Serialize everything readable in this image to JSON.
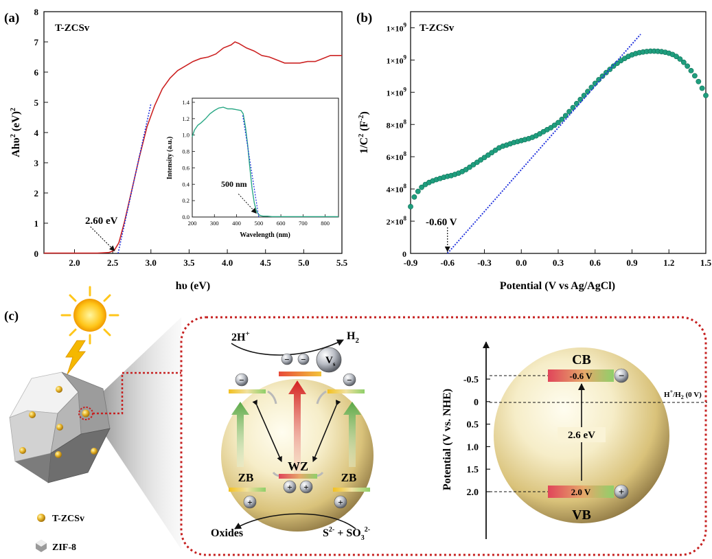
{
  "panel_a": {
    "panel_label": "(a)",
    "sample": "T-ZCSv",
    "annotation": "2.60 eV",
    "xlabel": "hυ (eV)",
    "ylabel_main": "Ahυ",
    "ylabel_sup1": "2",
    "ylabel_mid": " (eV)",
    "ylabel_sup2": "2",
    "inset": {
      "annotation": "500 nm",
      "xlabel": "Wavelength (nm)",
      "ylabel": "Intensity (a.u.)"
    }
  },
  "panel_b": {
    "panel_label": "(b)",
    "sample": "T-ZCSv",
    "annotation": "-0.60 V",
    "xlabel": "Potential (V vs Ag/AgCl)",
    "ylabel_main": "1/C",
    "ylabel_sup1": "2",
    "ylabel_mid": " (F",
    "ylabel_sup2": "-2",
    "ylabel_end": ")"
  },
  "panel_c": {
    "panel_label": "(c)",
    "legend_tzcsv": "T-ZCSv",
    "legend_zif8": "ZIF-8",
    "h_plus": "2H",
    "h_plus_sup": "+",
    "h2": "H",
    "h2_sub": "2",
    "vs": "V",
    "vs_sub": "s",
    "wz": "WZ",
    "zb": "ZB",
    "oxides": "Oxides",
    "sulfide": "S",
    "sulfide_sup": "2-",
    "sulfite_mid": " + SO",
    "sulfite_sub": "3",
    "sulfite_sup": "2-",
    "cb": "CB",
    "vb": "VB",
    "cb_value": "-0.6 V",
    "vb_value": "2.0 V",
    "gap": "2.6 eV",
    "reference": "H",
    "reference_sup": "+",
    "reference_end": "/H",
    "reference_sub": "2",
    "reference_tail": " (0 V)",
    "axis_label": "Potential (V vs. NHE)",
    "axis_ticks": [
      "-0.5",
      "0",
      "0.5",
      "1.0",
      "1.5",
      "2.0"
    ]
  },
  "chart_data": [
    {
      "type": "line",
      "name": "Tauc plot",
      "xlabel": "hυ (eV)",
      "ylabel": "Ahυ² (eV)²",
      "xlim": [
        1.6,
        5.5
      ],
      "ylim": [
        0,
        8
      ],
      "xticks": [
        "2.0",
        "2.5",
        "3.0",
        "3.5",
        "4.0",
        "4.5",
        "5.0",
        "5.5"
      ],
      "yticks": [
        "0",
        "1",
        "2",
        "3",
        "4",
        "5",
        "6",
        "7",
        "8"
      ],
      "series": [
        {
          "color": "#cc2222",
          "x": [
            1.6,
            2.3,
            2.45,
            2.52,
            2.58,
            2.65,
            2.75,
            2.85,
            2.95,
            3.05,
            3.15,
            3.25,
            3.35,
            3.45,
            3.55,
            3.65,
            3.75,
            3.85,
            3.95,
            4.05,
            4.1,
            4.15,
            4.25,
            4.35,
            4.45,
            4.55,
            4.65,
            4.75,
            4.85,
            4.95,
            5.05,
            5.15,
            5.25,
            5.35,
            5.45,
            5.5
          ],
          "y": [
            0.01,
            0.01,
            0.03,
            0.1,
            0.35,
            1.0,
            2.1,
            3.2,
            4.2,
            4.9,
            5.45,
            5.8,
            6.05,
            6.2,
            6.35,
            6.45,
            6.5,
            6.6,
            6.8,
            6.9,
            7.0,
            6.95,
            6.8,
            6.7,
            6.55,
            6.5,
            6.4,
            6.3,
            6.3,
            6.3,
            6.35,
            6.35,
            6.45,
            6.55,
            6.55,
            6.55
          ]
        }
      ],
      "fit_line": {
        "x": [
          2.57,
          3.0
        ],
        "y": [
          0.0,
          4.95
        ],
        "color": "#2233dd"
      },
      "annotation": {
        "text": "2.60 eV",
        "x": 2.55,
        "y": 0.02
      },
      "inset": {
        "type": "line",
        "xlabel": "Wavelength (nm)",
        "ylabel": "Intensity (a.u.)",
        "xlim": [
          200,
          860
        ],
        "ylim": [
          0,
          1.45
        ],
        "xticks": [
          "200",
          "300",
          "400",
          "500",
          "600",
          "700",
          "800"
        ],
        "yticks": [
          "0.0",
          "0.2",
          "0.4",
          "0.6",
          "0.8",
          "1.0",
          "1.2",
          "1.4"
        ],
        "series": [
          {
            "color": "#2aa885",
            "x": [
              200,
              210,
              225,
              240,
              260,
              280,
              300,
              320,
              340,
              360,
              380,
              400,
              420,
              430,
              440,
              450,
              460,
              470,
              480,
              490,
              500,
              510,
              520,
              540,
              560,
              600,
              700,
              800,
              860
            ],
            "y": [
              0.98,
              1.06,
              1.12,
              1.15,
              1.2,
              1.26,
              1.3,
              1.33,
              1.34,
              1.32,
              1.32,
              1.31,
              1.3,
              1.26,
              1.1,
              0.88,
              0.6,
              0.35,
              0.17,
              0.07,
              0.03,
              0.015,
              0.01,
              0.01,
              0.005,
              0.005,
              0.005,
              0.005,
              0.005
            ]
          }
        ],
        "fit_line": {
          "x": [
            428,
            500
          ],
          "y": [
            1.24,
            0.0
          ],
          "color": "#2233dd"
        },
        "annotation": {
          "text": "500 nm",
          "x": 495,
          "y": 0.03
        }
      }
    },
    {
      "type": "scatter",
      "name": "Mott-Schottky plot",
      "xlabel": "Potential (V vs Ag/AgCl)",
      "ylabel": "1/C² (F⁻²)",
      "xlim": [
        -0.9,
        1.5
      ],
      "ylim": [
        0,
        1500000000
      ],
      "xticks": [
        "-0.9",
        "-0.6",
        "-0.3",
        "0.0",
        "0.3",
        "0.6",
        "0.9",
        "1.2",
        "1.5"
      ],
      "yticks": [
        {
          "base": "0",
          "exp": ""
        },
        {
          "base": "2×10",
          "exp": "8"
        },
        {
          "base": "4×10",
          "exp": "8"
        },
        {
          "base": "6×10",
          "exp": "8"
        },
        {
          "base": "8×10",
          "exp": "8"
        },
        {
          "base": "1×10",
          "exp": "9"
        },
        {
          "base": "1×10",
          "exp": "9"
        },
        {
          "base": "1×10",
          "exp": "9"
        }
      ],
      "series": [
        {
          "color": "#1f9e7e",
          "x": [
            -0.9,
            -0.87,
            -0.84,
            -0.81,
            -0.78,
            -0.75,
            -0.72,
            -0.69,
            -0.66,
            -0.63,
            -0.6,
            -0.57,
            -0.54,
            -0.51,
            -0.48,
            -0.45,
            -0.42,
            -0.39,
            -0.36,
            -0.33,
            -0.3,
            -0.27,
            -0.24,
            -0.21,
            -0.18,
            -0.15,
            -0.12,
            -0.09,
            -0.06,
            -0.03,
            0.0,
            0.03,
            0.06,
            0.09,
            0.12,
            0.15,
            0.18,
            0.21,
            0.24,
            0.27,
            0.3,
            0.33,
            0.36,
            0.39,
            0.42,
            0.45,
            0.48,
            0.51,
            0.54,
            0.57,
            0.6,
            0.63,
            0.66,
            0.69,
            0.72,
            0.75,
            0.78,
            0.81,
            0.84,
            0.87,
            0.9,
            0.93,
            0.96,
            0.99,
            1.02,
            1.05,
            1.08,
            1.11,
            1.14,
            1.17,
            1.2,
            1.23,
            1.26,
            1.29,
            1.32,
            1.35,
            1.38,
            1.41,
            1.44,
            1.47,
            1.5
          ],
          "y": [
            290000000,
            350000000,
            385000000,
            410000000,
            428000000,
            440000000,
            450000000,
            458000000,
            465000000,
            472000000,
            478000000,
            483000000,
            490000000,
            498000000,
            508000000,
            520000000,
            535000000,
            550000000,
            565000000,
            580000000,
            595000000,
            610000000,
            625000000,
            640000000,
            655000000,
            665000000,
            672000000,
            680000000,
            688000000,
            694000000,
            700000000,
            706000000,
            712000000,
            720000000,
            730000000,
            742000000,
            755000000,
            768000000,
            780000000,
            795000000,
            812000000,
            832000000,
            855000000,
            880000000,
            905000000,
            930000000,
            955000000,
            980000000,
            1005000000,
            1030000000,
            1055000000,
            1078000000,
            1100000000,
            1122000000,
            1142000000,
            1162000000,
            1180000000,
            1196000000,
            1210000000,
            1222000000,
            1232000000,
            1240000000,
            1246000000,
            1250000000,
            1253000000,
            1255000000,
            1255000000,
            1254000000,
            1252000000,
            1248000000,
            1242000000,
            1234000000,
            1222000000,
            1206000000,
            1186000000,
            1162000000,
            1134000000,
            1102000000,
            1066000000,
            1025000000,
            980000000
          ]
        }
      ],
      "fit_line": {
        "x": [
          -0.6,
          0.97
        ],
        "y": [
          0,
          1360000000
        ],
        "color": "#2233dd"
      },
      "annotation": {
        "text": "-0.60 V",
        "x": -0.6,
        "y": 0
      }
    }
  ]
}
